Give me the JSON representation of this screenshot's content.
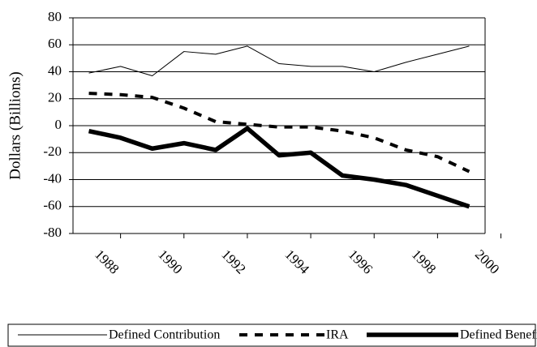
{
  "chart_data": {
    "type": "line",
    "y_label": "Dollars (Billions)",
    "x": [
      1987,
      1988,
      1989,
      1990,
      1991,
      1992,
      1993,
      1994,
      1995,
      1996,
      1997,
      1998,
      1999
    ],
    "xlim": [
      1986.5,
      1999.5
    ],
    "xticks": [
      1988,
      1990,
      1992,
      1994,
      1996,
      1998,
      2000
    ],
    "ylim": [
      -80,
      80
    ],
    "yticks": [
      -80,
      -60,
      -40,
      -20,
      0,
      20,
      40,
      60,
      80
    ],
    "grid": true,
    "series": [
      {
        "name": "Defined Contribution",
        "color": "#000000",
        "values": [
          39,
          44,
          37,
          55,
          53,
          59,
          46,
          44,
          44,
          40,
          47,
          53,
          59
        ]
      },
      {
        "name": "IRA",
        "color": "#000000",
        "values": [
          24,
          23,
          21,
          13,
          3,
          1,
          -1,
          -1,
          -4,
          -9,
          -18,
          -23,
          -34
        ]
      },
      {
        "name": "Defined Benefit",
        "color": "#000000",
        "values": [
          -4,
          -9,
          -17,
          -13,
          -18,
          -2,
          -22,
          -20,
          -37,
          -40,
          -44,
          -52,
          -60
        ]
      }
    ]
  }
}
